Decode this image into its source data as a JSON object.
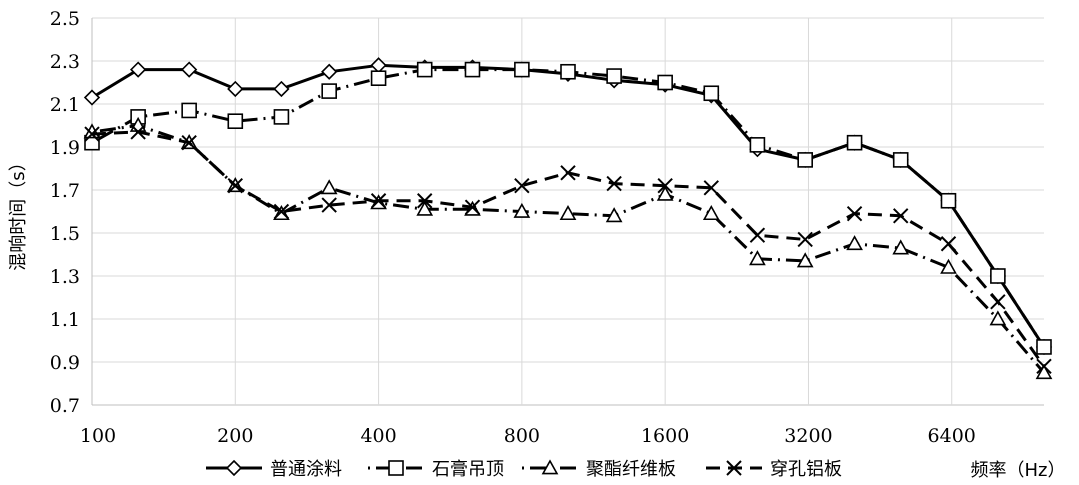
{
  "chart_data": {
    "type": "line",
    "xlabel": "频率（Hz）",
    "ylabel": "混响时间（s）",
    "xscale": "log2",
    "x_tick_labels": [
      "100",
      "200",
      "400",
      "800",
      "1600",
      "3200",
      "6400"
    ],
    "x_ticks": [
      100,
      200,
      400,
      800,
      1600,
      3200,
      6400
    ],
    "y_tick_labels": [
      "0.7",
      "0.9",
      "1.1",
      "1.3",
      "1.5",
      "1.7",
      "1.9",
      "2.1",
      "2.3",
      "2.5"
    ],
    "ylim": [
      0.7,
      2.5
    ],
    "grid": true,
    "legend": "bottom",
    "x": [
      100,
      125,
      160,
      200,
      250,
      315,
      400,
      500,
      630,
      800,
      1000,
      1250,
      1600,
      2000,
      2500,
      3150,
      4000,
      5000,
      6300,
      8000,
      10000
    ],
    "series": [
      {
        "name": "普通涂料",
        "marker": "diamond",
        "dash": "solid",
        "color": "#000000",
        "values": [
          2.13,
          2.26,
          2.26,
          2.17,
          2.17,
          2.25,
          2.28,
          2.27,
          2.27,
          2.26,
          2.24,
          2.21,
          2.19,
          2.14,
          1.89,
          1.84,
          1.92,
          1.84,
          1.65,
          1.3,
          0.97
        ]
      },
      {
        "name": "石膏吊顶",
        "marker": "square",
        "dash": "dashdot",
        "color": "#000000",
        "values": [
          1.92,
          2.04,
          2.07,
          2.02,
          2.04,
          2.16,
          2.22,
          2.26,
          2.26,
          2.26,
          2.25,
          2.23,
          2.2,
          2.15,
          1.91,
          1.84,
          1.92,
          1.84,
          1.65,
          1.3,
          0.97
        ]
      },
      {
        "name": "聚酯纤维板",
        "marker": "triangle",
        "dash": "dashdot",
        "color": "#000000",
        "values": [
          1.97,
          2.0,
          1.92,
          1.72,
          1.59,
          1.71,
          1.64,
          1.61,
          1.61,
          1.6,
          1.59,
          1.58,
          1.68,
          1.59,
          1.38,
          1.37,
          1.45,
          1.43,
          1.34,
          1.1,
          0.85
        ]
      },
      {
        "name": "穿孔铝板",
        "marker": "x",
        "dash": "dashed",
        "color": "#000000",
        "values": [
          1.96,
          1.97,
          1.92,
          1.72,
          1.6,
          1.63,
          1.65,
          1.65,
          1.62,
          1.72,
          1.78,
          1.73,
          1.72,
          1.71,
          1.49,
          1.47,
          1.59,
          1.58,
          1.45,
          1.18,
          0.88
        ]
      }
    ]
  }
}
